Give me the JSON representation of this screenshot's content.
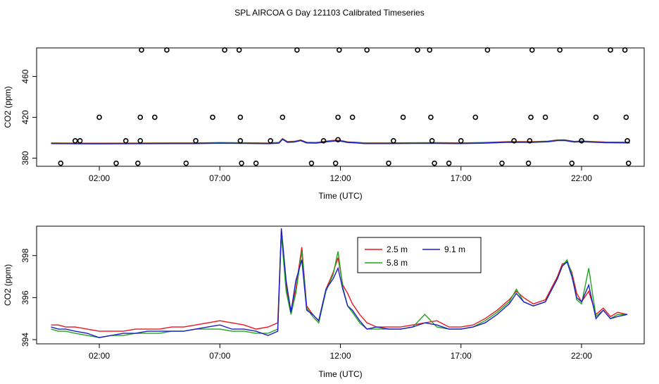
{
  "title": "SPL AIRCOA G  Day 121103  Calibrated Timeseries",
  "chart_data": [
    {
      "type": "scatter",
      "title": "SPL AIRCOA G  Day 121103  Calibrated Timeseries",
      "xlabel": "Time (UTC)",
      "ylabel": "CO2 (ppm)",
      "xlim": [
        -0.6,
        24.6
      ],
      "ylim": [
        372,
        488
      ],
      "xticks": [
        2,
        7,
        12,
        17,
        22
      ],
      "xtick_labels": [
        "02:00",
        "07:00",
        "12:00",
        "17:00",
        "22:00"
      ],
      "yticks": [
        380,
        420,
        460
      ],
      "ytick_labels": [
        "380",
        "420",
        "460"
      ],
      "grid": false,
      "lines": {
        "x": [
          0.0,
          1.0,
          2.0,
          3.0,
          4.0,
          5.0,
          6.0,
          7.0,
          8.0,
          9.0,
          9.45,
          9.6,
          9.8,
          10.1,
          10.35,
          10.6,
          11.0,
          11.5,
          11.8,
          12.0,
          12.3,
          12.6,
          13.0,
          14.0,
          15.0,
          16.0,
          17.0,
          18.0,
          19.0,
          20.0,
          20.6,
          21.0,
          21.3,
          21.7,
          22.0,
          23.0,
          24.0
        ],
        "y": [
          394.6,
          394.4,
          394.3,
          394.4,
          394.5,
          394.6,
          394.6,
          394.9,
          394.7,
          394.5,
          395.0,
          398.8,
          395.8,
          396.2,
          397.5,
          395.2,
          395.0,
          396.5,
          397.2,
          397.0,
          395.6,
          395.3,
          394.6,
          394.6,
          394.7,
          394.8,
          394.6,
          395.0,
          395.9,
          395.8,
          396.3,
          397.5,
          397.6,
          396.0,
          396.4,
          395.4,
          395.2
        ]
      },
      "series": [
        {
          "name": "",
          "color": "#000000",
          "x": [
            0.4,
            1.0,
            1.2,
            2.0,
            2.7,
            3.1,
            3.6,
            3.7,
            3.7,
            3.75,
            4.3,
            4.8,
            5.6,
            6.0,
            6.7,
            7.2,
            7.8,
            7.85,
            7.85,
            7.9,
            8.5,
            9.1,
            9.6,
            10.2,
            10.8,
            11.3,
            11.8,
            11.9,
            11.9,
            11.95,
            12.5,
            13.1,
            14.0,
            14.2,
            14.6,
            15.2,
            15.7,
            15.75,
            15.8,
            15.9,
            16.5,
            17.0,
            17.6,
            18.1,
            18.7,
            19.2,
            19.8,
            19.85,
            19.9,
            19.95,
            20.5,
            21.1,
            21.6,
            22.0,
            22.6,
            23.2,
            23.8,
            23.85,
            23.9,
            23.95
          ],
          "y": [
            375,
            397,
            397,
            420,
            375,
            397,
            375,
            397,
            420,
            486,
            420,
            486,
            375,
            397,
            420,
            486,
            486,
            420,
            397,
            375,
            375,
            397,
            420,
            486,
            375,
            397,
            375,
            398,
            420,
            486,
            420,
            486,
            375,
            397,
            420,
            486,
            486,
            420,
            397,
            375,
            375,
            397,
            420,
            486,
            375,
            397,
            375,
            397,
            420,
            486,
            420,
            486,
            375,
            397,
            420,
            486,
            486,
            420,
            397,
            375
          ]
        }
      ]
    },
    {
      "type": "line",
      "title": "",
      "xlabel": "Time (UTC)",
      "ylabel": "CO2 (ppm)",
      "xlim": [
        -0.6,
        24.6
      ],
      "ylim": [
        393.8,
        399.4
      ],
      "xticks": [
        2,
        7,
        12,
        17,
        22
      ],
      "xtick_labels": [
        "02:00",
        "07:00",
        "12:00",
        "17:00",
        "22:00"
      ],
      "yticks": [
        394,
        396,
        398
      ],
      "ytick_labels": [
        "394",
        "396",
        "398"
      ],
      "grid": false,
      "legend_position": "top-center",
      "series": [
        {
          "name": "2.5 m",
          "color": "#e8161d",
          "x": [
            0.0,
            0.3,
            0.6,
            1.0,
            1.5,
            2.0,
            2.5,
            3.0,
            3.5,
            4.0,
            4.5,
            5.0,
            5.5,
            6.0,
            6.5,
            7.0,
            7.5,
            8.0,
            8.5,
            9.0,
            9.4,
            9.55,
            9.75,
            9.95,
            10.15,
            10.4,
            10.6,
            10.85,
            11.1,
            11.4,
            11.7,
            11.9,
            12.1,
            12.3,
            12.5,
            12.8,
            13.1,
            13.5,
            14.0,
            14.5,
            15.0,
            15.5,
            16.0,
            16.5,
            17.0,
            17.5,
            18.0,
            18.5,
            19.0,
            19.3,
            19.6,
            20.0,
            20.5,
            21.0,
            21.2,
            21.4,
            21.6,
            21.8,
            22.0,
            22.3,
            22.6,
            22.9,
            23.2,
            23.5,
            23.9
          ],
          "y": [
            394.7,
            394.7,
            394.6,
            394.6,
            394.5,
            394.4,
            394.4,
            394.4,
            394.5,
            394.5,
            394.5,
            394.6,
            394.6,
            394.7,
            394.8,
            394.9,
            394.8,
            394.7,
            394.5,
            394.6,
            394.8,
            399.2,
            396.5,
            395.4,
            396.4,
            398.4,
            395.6,
            395.2,
            394.9,
            396.4,
            397.2,
            397.9,
            396.6,
            396.2,
            395.7,
            395.2,
            394.8,
            394.6,
            394.6,
            394.6,
            394.7,
            394.8,
            394.9,
            394.6,
            394.6,
            394.7,
            395.0,
            395.4,
            395.9,
            396.3,
            396.0,
            395.7,
            395.9,
            397.0,
            397.6,
            397.7,
            397.2,
            396.2,
            395.8,
            396.3,
            395.2,
            395.5,
            395.1,
            395.3,
            395.2
          ]
        },
        {
          "name": "5.8 m",
          "color": "#1ea61c",
          "x": [
            0.0,
            0.3,
            0.6,
            1.0,
            1.5,
            2.0,
            2.5,
            3.0,
            3.5,
            4.0,
            4.5,
            5.0,
            5.5,
            6.0,
            6.5,
            7.0,
            7.5,
            8.0,
            8.5,
            9.0,
            9.4,
            9.55,
            9.75,
            9.95,
            10.15,
            10.4,
            10.6,
            10.85,
            11.1,
            11.4,
            11.7,
            11.9,
            12.1,
            12.3,
            12.5,
            12.8,
            13.1,
            13.5,
            14.0,
            14.5,
            15.0,
            15.5,
            16.0,
            16.5,
            17.0,
            17.5,
            18.0,
            18.5,
            19.0,
            19.3,
            19.6,
            20.0,
            20.5,
            21.0,
            21.2,
            21.4,
            21.6,
            21.8,
            22.0,
            22.3,
            22.6,
            22.9,
            23.2,
            23.5,
            23.9
          ],
          "y": [
            394.5,
            394.4,
            394.4,
            394.3,
            394.2,
            394.1,
            394.2,
            394.2,
            394.3,
            394.3,
            394.3,
            394.4,
            394.4,
            394.5,
            394.5,
            394.5,
            394.4,
            394.4,
            394.3,
            394.3,
            394.5,
            399.0,
            396.3,
            395.2,
            396.2,
            398.2,
            395.5,
            395.1,
            394.8,
            396.3,
            397.1,
            398.2,
            396.5,
            395.6,
            395.3,
            394.8,
            394.5,
            394.5,
            394.5,
            394.5,
            394.6,
            395.2,
            394.6,
            394.5,
            394.5,
            394.6,
            394.9,
            395.3,
            395.8,
            396.4,
            395.8,
            395.6,
            395.8,
            396.9,
            397.5,
            397.8,
            397.1,
            395.9,
            395.7,
            397.4,
            395.1,
            395.4,
            395.0,
            395.2,
            395.2
          ]
        },
        {
          "name": "9.1 m",
          "color": "#1c1ccd",
          "x": [
            0.0,
            0.3,
            0.6,
            1.0,
            1.5,
            2.0,
            2.5,
            3.0,
            3.5,
            4.0,
            4.5,
            5.0,
            5.5,
            6.0,
            6.5,
            7.0,
            7.5,
            8.0,
            8.5,
            9.0,
            9.4,
            9.55,
            9.75,
            9.95,
            10.15,
            10.4,
            10.6,
            10.85,
            11.1,
            11.4,
            11.7,
            11.9,
            12.1,
            12.3,
            12.5,
            12.8,
            13.1,
            13.5,
            14.0,
            14.5,
            15.0,
            15.5,
            16.0,
            16.5,
            17.0,
            17.5,
            18.0,
            18.5,
            19.0,
            19.3,
            19.6,
            20.0,
            20.5,
            21.0,
            21.2,
            21.4,
            21.6,
            21.8,
            22.0,
            22.3,
            22.6,
            22.9,
            23.2,
            23.5,
            23.9
          ],
          "y": [
            394.6,
            394.5,
            394.5,
            394.4,
            394.3,
            394.1,
            394.2,
            394.3,
            394.3,
            394.4,
            394.4,
            394.4,
            394.4,
            394.5,
            394.6,
            394.7,
            394.5,
            394.5,
            394.4,
            394.2,
            394.4,
            399.3,
            396.8,
            395.3,
            396.8,
            397.8,
            395.4,
            395.2,
            394.9,
            396.4,
            396.9,
            397.4,
            396.4,
            395.6,
            395.4,
            394.9,
            394.5,
            394.6,
            394.5,
            394.5,
            394.6,
            394.8,
            394.7,
            394.5,
            394.5,
            394.6,
            394.8,
            395.2,
            395.7,
            396.2,
            395.8,
            395.6,
            395.8,
            396.9,
            397.5,
            397.7,
            397.0,
            396.0,
            395.8,
            396.6,
            395.0,
            395.4,
            395.0,
            395.1,
            395.2
          ]
        }
      ]
    }
  ]
}
